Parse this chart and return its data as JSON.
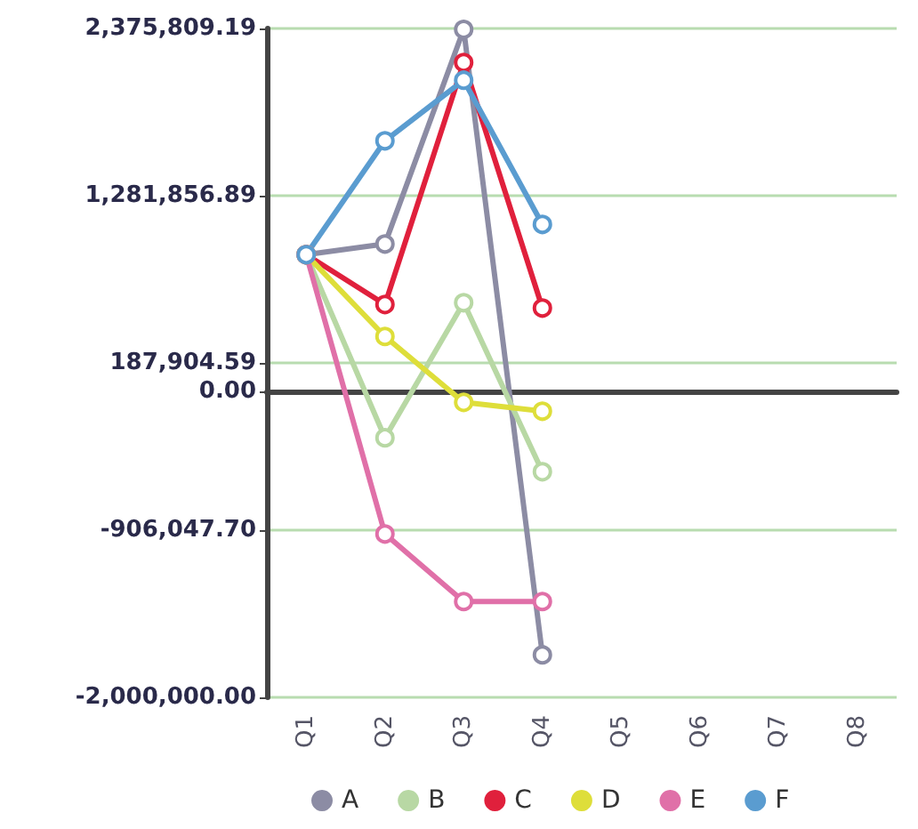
{
  "chart_data": {
    "type": "line",
    "categories": [
      "Q1",
      "Q2",
      "Q3",
      "Q4",
      "Q5",
      "Q6",
      "Q7",
      "Q8"
    ],
    "series": [
      {
        "name": "A",
        "color": "#8c8ca4",
        "values": [
          896000,
          966000,
          2370000,
          -1722000,
          null,
          null,
          null,
          null
        ]
      },
      {
        "name": "B",
        "color": "#b8d8a4",
        "values": [
          896000,
          -302000,
          582000,
          -524000,
          null,
          null,
          null,
          null
        ]
      },
      {
        "name": "C",
        "color": "#e0203c",
        "values": [
          896000,
          570000,
          2153000,
          547000,
          null,
          null,
          null,
          null
        ]
      },
      {
        "name": "D",
        "color": "#dede3a",
        "values": [
          896000,
          361000,
          -70000,
          -128000,
          null,
          null,
          null,
          null
        ]
      },
      {
        "name": "E",
        "color": "#e070a8",
        "values": [
          896000,
          -931000,
          -1373000,
          -1373000,
          null,
          null,
          null,
          null
        ]
      },
      {
        "name": "F",
        "color": "#5a9cd0",
        "values": [
          896000,
          1641000,
          2037000,
          1094000,
          null,
          null,
          null,
          null
        ]
      }
    ],
    "ylim": [
      -2000000,
      2375809.19
    ],
    "yticks": [
      {
        "value": -2000000,
        "label": "-2,000,000.00"
      },
      {
        "value": -906047.7,
        "label": "-906,047.70"
      },
      {
        "value": 0,
        "label": "0.00"
      },
      {
        "value": 187904.59,
        "label": "187,904.59"
      },
      {
        "value": 1281856.89,
        "label": "1,281,856.89"
      },
      {
        "value": 2375809.19,
        "label": "2,375,809.19"
      }
    ],
    "grid": "y",
    "legend": "bottom",
    "marker": "circle",
    "line_style": "solid"
  }
}
